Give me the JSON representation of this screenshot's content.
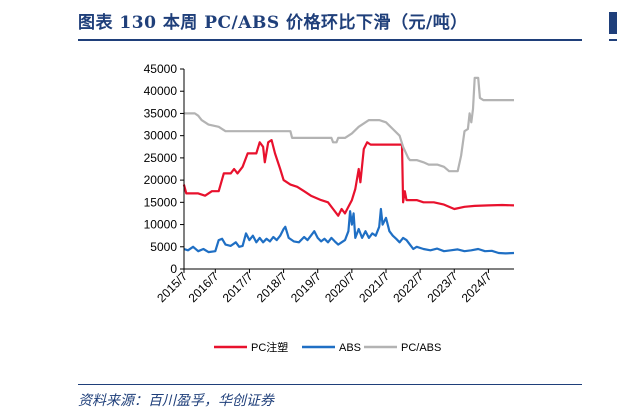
{
  "header": {
    "title": "图表 130   本周 PC/ABS 价格环比下滑（元/吨）"
  },
  "footer": {
    "source": "资料来源：百川盈孚，华创证券"
  },
  "chart_data": {
    "type": "line",
    "title": "",
    "xlabel": "",
    "ylabel": "",
    "ylim": [
      0,
      45000
    ],
    "yticks": [
      0,
      5000,
      10000,
      15000,
      20000,
      25000,
      30000,
      35000,
      40000,
      45000
    ],
    "xlim": [
      2015.583,
      2025.25
    ],
    "xticks": [
      {
        "x": 2015.5,
        "label": "2015/7"
      },
      {
        "x": 2016.5,
        "label": "2016/7"
      },
      {
        "x": 2017.5,
        "label": "2017/7"
      },
      {
        "x": 2018.5,
        "label": "2018/7"
      },
      {
        "x": 2019.5,
        "label": "2019/7"
      },
      {
        "x": 2020.5,
        "label": "2020/7"
      },
      {
        "x": 2021.5,
        "label": "2021/7"
      },
      {
        "x": 2022.5,
        "label": "2022/7"
      },
      {
        "x": 2023.5,
        "label": "2023/7"
      },
      {
        "x": 2024.5,
        "label": "2024/7"
      }
    ],
    "grid": false,
    "legend_position": "bottom",
    "series": [
      {
        "name": "PC注塑",
        "color": "#e8112d",
        "points": [
          [
            2015.58,
            19000
          ],
          [
            2015.65,
            17000
          ],
          [
            2016.0,
            17000
          ],
          [
            2016.2,
            16500
          ],
          [
            2016.4,
            17500
          ],
          [
            2016.6,
            17500
          ],
          [
            2016.75,
            21500
          ],
          [
            2016.95,
            21500
          ],
          [
            2017.05,
            22500
          ],
          [
            2017.15,
            21500
          ],
          [
            2017.3,
            23000
          ],
          [
            2017.45,
            26000
          ],
          [
            2017.7,
            26000
          ],
          [
            2017.8,
            28500
          ],
          [
            2017.9,
            27500
          ],
          [
            2017.95,
            24000
          ],
          [
            2018.05,
            28500
          ],
          [
            2018.15,
            29000
          ],
          [
            2018.25,
            26000
          ],
          [
            2018.4,
            22500
          ],
          [
            2018.5,
            20000
          ],
          [
            2018.7,
            19000
          ],
          [
            2018.9,
            18500
          ],
          [
            2019.1,
            17500
          ],
          [
            2019.3,
            16500
          ],
          [
            2019.6,
            15500
          ],
          [
            2019.8,
            15000
          ],
          [
            2019.95,
            13500
          ],
          [
            2020.1,
            12000
          ],
          [
            2020.2,
            13500
          ],
          [
            2020.3,
            12500
          ],
          [
            2020.4,
            14000
          ],
          [
            2020.5,
            15500
          ],
          [
            2020.6,
            18000
          ],
          [
            2020.7,
            22500
          ],
          [
            2020.75,
            19500
          ],
          [
            2020.85,
            27000
          ],
          [
            2020.95,
            28500
          ],
          [
            2021.05,
            28000
          ],
          [
            2021.5,
            28000
          ],
          [
            2021.97,
            28000
          ],
          [
            2022.0,
            15000
          ],
          [
            2022.05,
            17500
          ],
          [
            2022.1,
            15500
          ],
          [
            2022.4,
            15500
          ],
          [
            2022.6,
            15000
          ],
          [
            2022.9,
            15000
          ],
          [
            2023.2,
            14500
          ],
          [
            2023.5,
            13500
          ],
          [
            2023.8,
            14000
          ],
          [
            2024.1,
            14200
          ],
          [
            2024.5,
            14300
          ],
          [
            2024.9,
            14400
          ],
          [
            2025.25,
            14300
          ]
        ]
      },
      {
        "name": "ABS",
        "color": "#1f6fc4",
        "points": [
          [
            2015.58,
            4500
          ],
          [
            2015.7,
            4200
          ],
          [
            2015.85,
            5000
          ],
          [
            2016.0,
            4000
          ],
          [
            2016.15,
            4500
          ],
          [
            2016.3,
            3800
          ],
          [
            2016.5,
            4000
          ],
          [
            2016.6,
            6500
          ],
          [
            2016.7,
            6800
          ],
          [
            2016.8,
            5500
          ],
          [
            2016.95,
            5200
          ],
          [
            2017.1,
            6000
          ],
          [
            2017.2,
            5000
          ],
          [
            2017.3,
            5200
          ],
          [
            2017.4,
            8000
          ],
          [
            2017.5,
            6500
          ],
          [
            2017.6,
            7500
          ],
          [
            2017.7,
            6000
          ],
          [
            2017.8,
            7000
          ],
          [
            2017.9,
            6000
          ],
          [
            2018.0,
            6800
          ],
          [
            2018.1,
            6200
          ],
          [
            2018.2,
            7200
          ],
          [
            2018.3,
            6500
          ],
          [
            2018.4,
            7500
          ],
          [
            2018.5,
            9000
          ],
          [
            2018.55,
            9500
          ],
          [
            2018.65,
            7000
          ],
          [
            2018.8,
            6200
          ],
          [
            2018.95,
            6000
          ],
          [
            2019.1,
            7200
          ],
          [
            2019.2,
            6500
          ],
          [
            2019.3,
            7500
          ],
          [
            2019.4,
            8500
          ],
          [
            2019.5,
            7000
          ],
          [
            2019.6,
            6200
          ],
          [
            2019.7,
            6800
          ],
          [
            2019.8,
            6000
          ],
          [
            2019.9,
            7000
          ],
          [
            2020.0,
            6200
          ],
          [
            2020.1,
            5500
          ],
          [
            2020.2,
            6000
          ],
          [
            2020.3,
            6500
          ],
          [
            2020.4,
            8500
          ],
          [
            2020.45,
            13000
          ],
          [
            2020.5,
            10000
          ],
          [
            2020.55,
            12500
          ],
          [
            2020.6,
            7000
          ],
          [
            2020.7,
            9000
          ],
          [
            2020.8,
            7000
          ],
          [
            2020.9,
            8500
          ],
          [
            2021.0,
            7000
          ],
          [
            2021.1,
            8000
          ],
          [
            2021.2,
            7500
          ],
          [
            2021.3,
            9500
          ],
          [
            2021.35,
            13500
          ],
          [
            2021.4,
            10000
          ],
          [
            2021.5,
            11500
          ],
          [
            2021.6,
            8500
          ],
          [
            2021.7,
            7500
          ],
          [
            2021.8,
            6800
          ],
          [
            2021.9,
            6000
          ],
          [
            2022.0,
            7000
          ],
          [
            2022.1,
            6500
          ],
          [
            2022.2,
            5500
          ],
          [
            2022.3,
            4500
          ],
          [
            2022.4,
            5000
          ],
          [
            2022.6,
            4500
          ],
          [
            2022.8,
            4200
          ],
          [
            2023.0,
            4600
          ],
          [
            2023.2,
            4000
          ],
          [
            2023.4,
            4200
          ],
          [
            2023.6,
            4400
          ],
          [
            2023.8,
            4000
          ],
          [
            2024.0,
            4200
          ],
          [
            2024.2,
            4500
          ],
          [
            2024.4,
            4000
          ],
          [
            2024.6,
            4100
          ],
          [
            2024.8,
            3600
          ],
          [
            2025.0,
            3500
          ],
          [
            2025.25,
            3600
          ]
        ]
      },
      {
        "name": "PC/ABS",
        "color": "#b3b3b3",
        "points": [
          [
            2015.58,
            35000
          ],
          [
            2015.9,
            35000
          ],
          [
            2016.0,
            34500
          ],
          [
            2016.1,
            33500
          ],
          [
            2016.3,
            32500
          ],
          [
            2016.6,
            32000
          ],
          [
            2016.8,
            31000
          ],
          [
            2017.2,
            31000
          ],
          [
            2018.0,
            31000
          ],
          [
            2018.7,
            31000
          ],
          [
            2018.75,
            29500
          ],
          [
            2019.5,
            29500
          ],
          [
            2019.9,
            29500
          ],
          [
            2019.95,
            28500
          ],
          [
            2020.05,
            28500
          ],
          [
            2020.1,
            29500
          ],
          [
            2020.3,
            29500
          ],
          [
            2020.5,
            30500
          ],
          [
            2020.7,
            32000
          ],
          [
            2020.9,
            33000
          ],
          [
            2021.0,
            33500
          ],
          [
            2021.3,
            33500
          ],
          [
            2021.5,
            33000
          ],
          [
            2021.7,
            31500
          ],
          [
            2021.9,
            30000
          ],
          [
            2022.0,
            27500
          ],
          [
            2022.15,
            25000
          ],
          [
            2022.2,
            24500
          ],
          [
            2022.4,
            24500
          ],
          [
            2022.6,
            24000
          ],
          [
            2022.75,
            23500
          ],
          [
            2022.8,
            23500
          ],
          [
            2023.0,
            23500
          ],
          [
            2023.2,
            23000
          ],
          [
            2023.35,
            22000
          ],
          [
            2023.6,
            22000
          ],
          [
            2023.7,
            25500
          ],
          [
            2023.8,
            31000
          ],
          [
            2023.9,
            31500
          ],
          [
            2023.95,
            35000
          ],
          [
            2024.0,
            33000
          ],
          [
            2024.05,
            36000
          ],
          [
            2024.1,
            43000
          ],
          [
            2024.2,
            43000
          ],
          [
            2024.25,
            38500
          ],
          [
            2024.35,
            38000
          ],
          [
            2025.25,
            38000
          ]
        ]
      }
    ]
  }
}
